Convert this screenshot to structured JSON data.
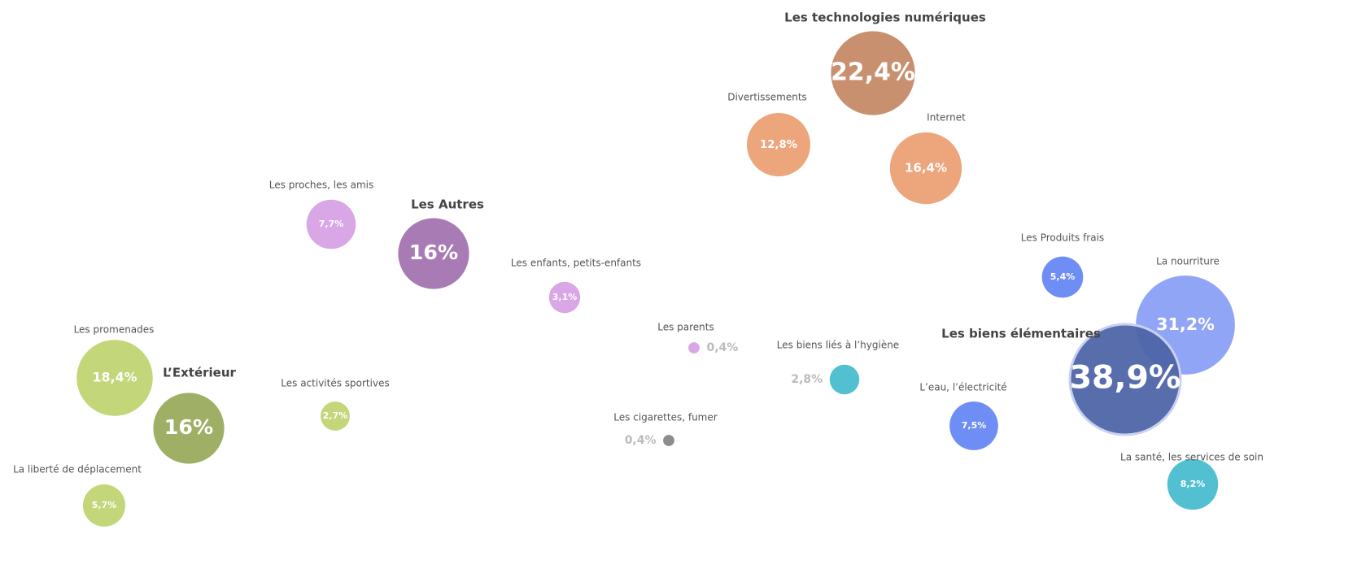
{
  "chart_data": {
    "type": "bubble",
    "items": [
      {
        "label": "Les technologies numériques",
        "value": 22.4,
        "value_label": "22,4%",
        "color": "#c8906f"
      },
      {
        "label": "Divertissements",
        "value": 12.8,
        "value_label": "12,8%",
        "color": "#eda57c"
      },
      {
        "label": "Internet",
        "value": 16.4,
        "value_label": "16,4%",
        "color": "#eda57c"
      },
      {
        "label": "Les proches, les amis",
        "value": 7.7,
        "value_label": "7,7%",
        "color": "#d9a6e6"
      },
      {
        "label": "Les Autres",
        "value": 16,
        "value_label": "16%",
        "color": "#a97bb5"
      },
      {
        "label": "Les enfants, petits-enfants",
        "value": 3.1,
        "value_label": "3,1%",
        "color": "#d9a6e6"
      },
      {
        "label": "Les parents",
        "value": 0.4,
        "value_label": "0,4%",
        "color": "#d9a6e6"
      },
      {
        "label": "Les promenades",
        "value": 18.4,
        "value_label": "18,4%",
        "color": "#c3d67a"
      },
      {
        "label": "L’Extérieur",
        "value": 16,
        "value_label": "16%",
        "color": "#9fb066"
      },
      {
        "label": "Les activités sportives",
        "value": 2.7,
        "value_label": "2,7%",
        "color": "#c3d67a"
      },
      {
        "label": "La liberté de déplacement",
        "value": 5.7,
        "value_label": "5,7%",
        "color": "#c3d67a"
      },
      {
        "label": "Les cigarettes, fumer",
        "value": 0.4,
        "value_label": "0,4%",
        "color": "#8c8c8c"
      },
      {
        "label": "Les biens liés à l’hygiène",
        "value": 2.8,
        "value_label": "2,8%",
        "color": "#52c0d1"
      },
      {
        "label": "Les Produits frais",
        "value": 5.4,
        "value_label": "5,4%",
        "color": "#6f8ef5"
      },
      {
        "label": "La nourriture",
        "value": 31.2,
        "value_label": "31,2%",
        "color": "#7d95f5"
      },
      {
        "label": "Les biens élémentaires",
        "value": 38.9,
        "value_label": "38,9%",
        "color": "#4e65a8"
      },
      {
        "label": "L’eau, l’électricité",
        "value": 7.5,
        "value_label": "7,5%",
        "color": "#6f8ef5"
      },
      {
        "label": "La santé, les services de soin",
        "value": 8.2,
        "value_label": "8,2%",
        "color": "#52c0d1"
      }
    ]
  }
}
